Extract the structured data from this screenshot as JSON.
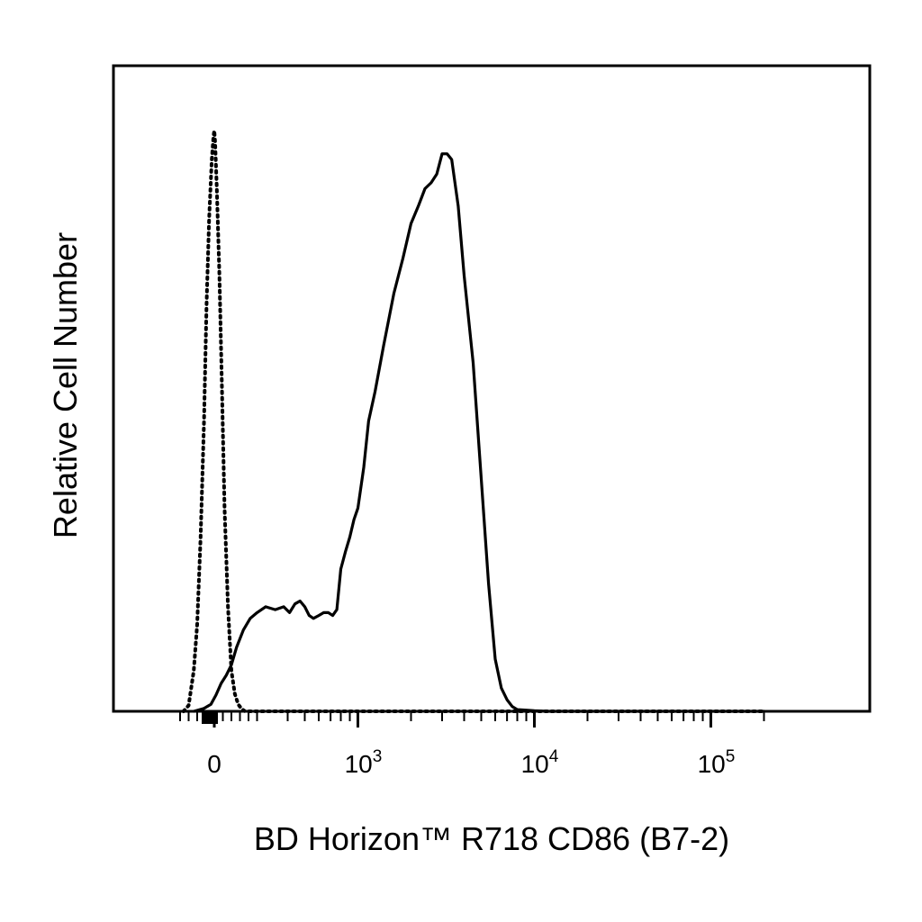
{
  "chart_data": {
    "type": "line",
    "title": "",
    "xlabel": "BD Horizon™ R718 CD86 (B7-2)",
    "ylabel": "Relative Cell Number",
    "x_scale": "biexponential",
    "x_tick_labels": [
      {
        "value": 0,
        "base": "0",
        "exp": ""
      },
      {
        "value": 1000,
        "base": "10",
        "exp": "3"
      },
      {
        "value": 10000,
        "base": "10",
        "exp": "4"
      },
      {
        "value": 100000,
        "base": "10",
        "exp": "5"
      }
    ],
    "xlim": [
      -300,
      200000
    ],
    "ylim": [
      0,
      1.0
    ],
    "y_ticks_shown": false,
    "grid": false,
    "legend": "none",
    "series": [
      {
        "style": "solid",
        "color": "#000000",
        "x": [
          -120,
          -60,
          -20,
          10,
          40,
          70,
          100,
          130,
          170,
          210,
          250,
          300,
          340,
          380,
          410,
          440,
          470,
          500,
          530,
          560,
          600,
          640,
          680,
          720,
          760,
          800,
          850,
          900,
          950,
          1000,
          1080,
          1150,
          1250,
          1400,
          1600,
          1800,
          2000,
          2200,
          2400,
          2600,
          2800,
          3000,
          3200,
          3400,
          3700,
          4000,
          4500,
          5000,
          5500,
          6000,
          6500,
          7000,
          7500,
          8000,
          9000,
          10000,
          12000,
          15000,
          20000,
          40000,
          100000,
          200000
        ],
        "y": [
          0.0,
          0.005,
          0.012,
          0.028,
          0.048,
          0.062,
          0.08,
          0.11,
          0.14,
          0.16,
          0.17,
          0.18,
          0.175,
          0.18,
          0.17,
          0.185,
          0.19,
          0.18,
          0.165,
          0.16,
          0.165,
          0.17,
          0.17,
          0.165,
          0.175,
          0.245,
          0.275,
          0.3,
          0.33,
          0.35,
          0.42,
          0.5,
          0.55,
          0.63,
          0.72,
          0.78,
          0.84,
          0.87,
          0.9,
          0.91,
          0.925,
          0.96,
          0.96,
          0.95,
          0.87,
          0.75,
          0.6,
          0.4,
          0.22,
          0.09,
          0.04,
          0.02,
          0.008,
          0.003,
          0.002,
          0.001,
          0.0,
          0.0,
          0.0,
          0.0,
          0.0,
          0.0
        ]
      },
      {
        "style": "dotted",
        "color": "#000000",
        "x": [
          -180,
          -150,
          -120,
          -100,
          -80,
          -60,
          -45,
          -30,
          -15,
          -5,
          0,
          5,
          15,
          30,
          45,
          60,
          80,
          100,
          120,
          140,
          160,
          180,
          1000,
          200000
        ],
        "y": [
          0.0,
          0.01,
          0.07,
          0.15,
          0.3,
          0.5,
          0.7,
          0.85,
          0.95,
          0.99,
          1.0,
          0.98,
          0.9,
          0.75,
          0.55,
          0.35,
          0.18,
          0.07,
          0.03,
          0.012,
          0.004,
          0.0,
          0.0,
          0.0
        ]
      }
    ]
  }
}
